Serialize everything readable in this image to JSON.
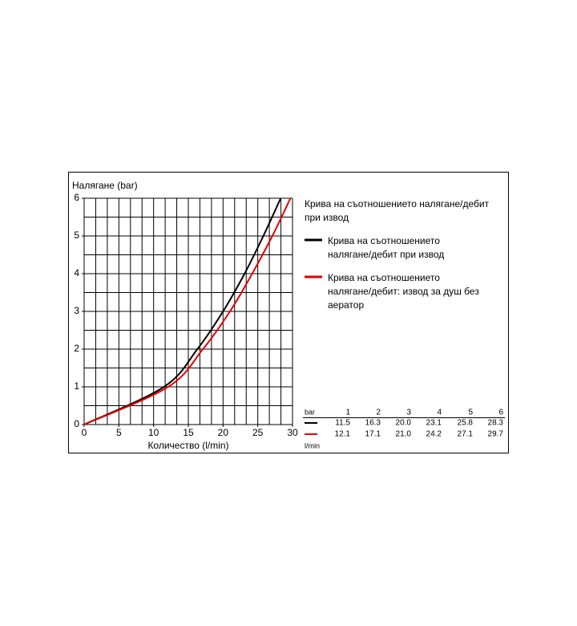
{
  "chart_data": {
    "type": "line",
    "y_label": "Налягане (bar)",
    "x_label": "Количество (l/min)",
    "xlim": [
      0,
      30
    ],
    "xticks": [
      0,
      5,
      10,
      15,
      20,
      25,
      30
    ],
    "ylim": [
      0,
      6
    ],
    "yticks": [
      0,
      1,
      2,
      3,
      4,
      5,
      6
    ],
    "grid": true,
    "x_grid_divisions": 18,
    "y_grid_divisions": 12,
    "legend_title": "Крива на съотношението налягане/дебит при извод",
    "series": [
      {
        "name": "Крива на съотношението налягане/дебит при извод",
        "color": "#000000",
        "x": [
          0,
          11.5,
          16.3,
          20.0,
          23.1,
          25.8,
          28.3
        ],
        "values": [
          0,
          1,
          2,
          3,
          4,
          5,
          6
        ]
      },
      {
        "name": "Крива на съотношението налягане/дебит: извод за душ без аератор",
        "color": "#e00000",
        "x": [
          0,
          12.1,
          17.1,
          21.0,
          24.2,
          27.1,
          29.7
        ],
        "values": [
          0,
          1,
          2,
          3,
          4,
          5,
          6
        ]
      }
    ]
  },
  "table": {
    "header_unit": "bar",
    "columns": [
      "1",
      "2",
      "3",
      "4",
      "5",
      "6"
    ],
    "rows": [
      [
        "11.5",
        "16.3",
        "20.0",
        "23.1",
        "25.8",
        "28.3"
      ],
      [
        "12.1",
        "17.1",
        "21.0",
        "24.2",
        "27.1",
        "29.7"
      ]
    ],
    "row_unit": "l/min"
  }
}
